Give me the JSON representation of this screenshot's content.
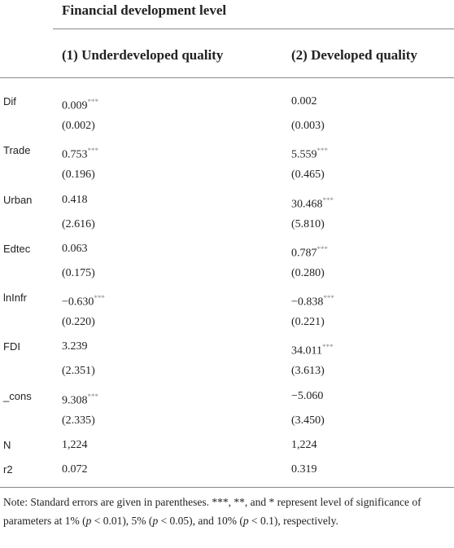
{
  "header": {
    "group": "Financial development level",
    "columns": [
      "(1) Underdeveloped quality",
      "(2) Developed quality"
    ]
  },
  "table": {
    "rows": [
      {
        "label": "Dif",
        "cells": [
          {
            "value": "0.009",
            "stars": "***"
          },
          {
            "value": "0.002"
          }
        ],
        "se": [
          "(0.002)",
          "(0.003)"
        ]
      },
      {
        "label": "Trade",
        "cells": [
          {
            "value": "0.753",
            "stars": "***"
          },
          {
            "value": "5.559",
            "stars": "***"
          }
        ],
        "se": [
          "(0.196)",
          "(0.465)"
        ]
      },
      {
        "label": "Urban",
        "cells": [
          {
            "value": "0.418"
          },
          {
            "value": "30.468",
            "stars": "***"
          }
        ],
        "se": [
          "(2.616)",
          "(5.810)"
        ]
      },
      {
        "label": "Edtec",
        "cells": [
          {
            "value": "0.063"
          },
          {
            "value": "0.787",
            "stars": "***"
          }
        ],
        "se": [
          "(0.175)",
          "(0.280)"
        ]
      },
      {
        "label": "lnInfr",
        "cells": [
          {
            "value": "−0.630",
            "stars": "***"
          },
          {
            "value": "−0.838",
            "stars": "***"
          }
        ],
        "se": [
          "(0.220)",
          "(0.221)"
        ]
      },
      {
        "label": "FDI",
        "cells": [
          {
            "value": "3.239"
          },
          {
            "value": "34.011",
            "stars": "***"
          }
        ],
        "se": [
          "(2.351)",
          "(3.613)"
        ]
      },
      {
        "label": "_cons",
        "cells": [
          {
            "value": "9.308",
            "stars": "***"
          },
          {
            "value": "−5.060"
          }
        ],
        "se": [
          "(2.335)",
          "(3.450)"
        ]
      },
      {
        "label": "N",
        "cells": [
          {
            "value": "1,224"
          },
          {
            "value": "1,224"
          }
        ]
      },
      {
        "label": "r2",
        "cells": [
          {
            "value": "0.072"
          },
          {
            "value": "0.319"
          }
        ]
      }
    ]
  },
  "note": {
    "parts": [
      "Note: Standard errors are given in parentheses. ***, **, and * represent level of significance of parameters at 1% (",
      "p",
      " < 0.01), 5% (",
      "p",
      " < 0.05), and 10% (",
      "p",
      " < 0.1), respectively."
    ]
  }
}
